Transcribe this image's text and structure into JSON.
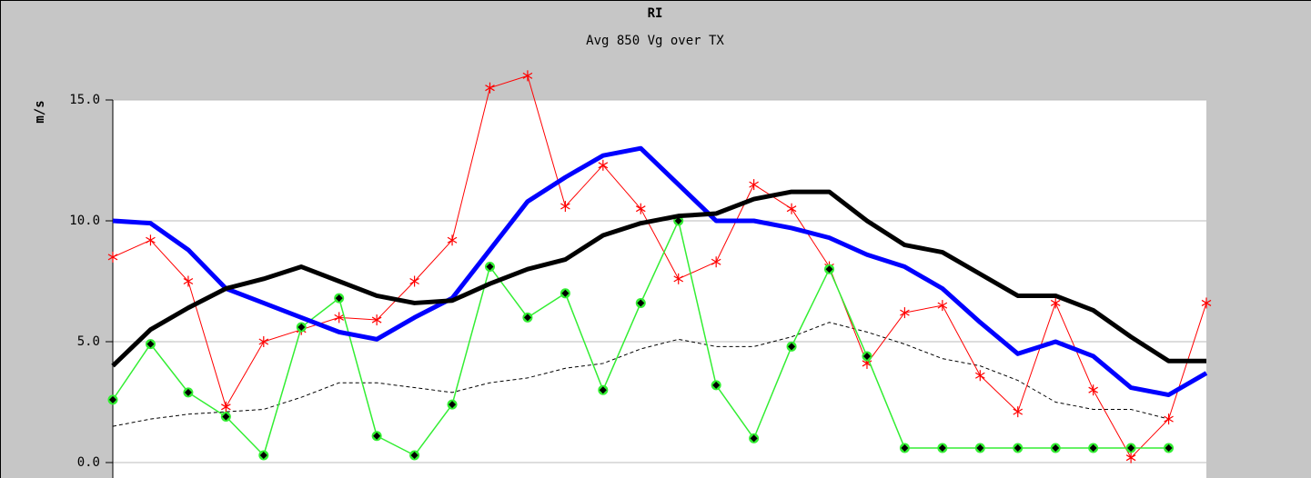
{
  "chart_data": {
    "type": "line",
    "title": "RI",
    "subtitle": "Avg 850 Vg over TX",
    "ylabel": "m/s",
    "x": [
      0,
      1,
      2,
      3,
      4,
      5,
      6,
      7,
      8,
      9,
      10,
      11,
      12,
      13,
      14,
      15,
      16,
      17,
      18,
      19,
      20,
      21,
      22,
      23,
      24,
      25,
      26,
      27,
      28,
      29
    ],
    "xlim": [
      0,
      29
    ],
    "ylim": [
      0,
      15
    ],
    "yticks": [
      {
        "value": 0,
        "label": "0.0"
      },
      {
        "value": 5,
        "label": "5.0"
      },
      {
        "value": 10,
        "label": "10.0"
      },
      {
        "value": 15,
        "label": "15.0"
      }
    ],
    "grid": true,
    "series": [
      {
        "color": "#000000",
        "width": 1,
        "dash": true,
        "values": [
          1.5,
          1.8,
          2.0,
          2.1,
          2.2,
          2.7,
          3.3,
          3.3,
          3.1,
          2.9,
          3.3,
          3.5,
          3.9,
          4.1,
          4.7,
          5.1,
          4.8,
          4.8,
          5.2,
          5.8,
          5.4,
          4.9,
          4.3,
          4.0,
          3.4,
          2.5,
          2.2,
          2.2,
          1.8,
          null
        ]
      },
      {
        "color": "#ff0000",
        "width": 1,
        "marker": "asterisk",
        "values": [
          8.5,
          9.2,
          7.5,
          2.3,
          5.0,
          5.5,
          6.0,
          5.9,
          7.5,
          9.2,
          15.5,
          16.0,
          10.6,
          12.3,
          10.5,
          7.6,
          8.3,
          11.5,
          10.5,
          8.1,
          4.1,
          6.2,
          6.5,
          3.6,
          2.1,
          6.6,
          3.0,
          0.2,
          1.8,
          6.6
        ]
      },
      {
        "color": "#33ee33",
        "width": 1.5,
        "marker": "diamond",
        "values": [
          2.6,
          4.9,
          2.9,
          1.9,
          0.3,
          5.6,
          6.8,
          1.1,
          0.3,
          2.4,
          8.1,
          6.0,
          7.0,
          3.0,
          6.6,
          10.0,
          3.2,
          1.0,
          4.8,
          8.0,
          4.4,
          0.6,
          0.6,
          0.6,
          0.6,
          0.6,
          0.6,
          0.6,
          0.6,
          null
        ]
      },
      {
        "color": "#0000ff",
        "width": 5,
        "values": [
          10.0,
          9.9,
          8.8,
          7.2,
          6.6,
          6.0,
          5.4,
          5.1,
          6.0,
          6.8,
          8.8,
          10.8,
          11.8,
          12.7,
          13.0,
          11.5,
          10.0,
          10.0,
          9.7,
          9.3,
          8.6,
          8.1,
          7.2,
          5.8,
          4.5,
          5.0,
          4.4,
          3.1,
          2.8,
          3.7
        ]
      },
      {
        "color": "#000000",
        "width": 5,
        "values": [
          4.0,
          5.5,
          6.4,
          7.2,
          7.6,
          8.1,
          7.5,
          6.9,
          6.6,
          6.7,
          7.4,
          8.0,
          8.4,
          9.4,
          9.9,
          10.2,
          10.3,
          10.9,
          11.2,
          11.2,
          10.0,
          9.0,
          8.7,
          7.8,
          6.9,
          6.9,
          6.3,
          5.2,
          4.2,
          4.2
        ]
      }
    ]
  }
}
